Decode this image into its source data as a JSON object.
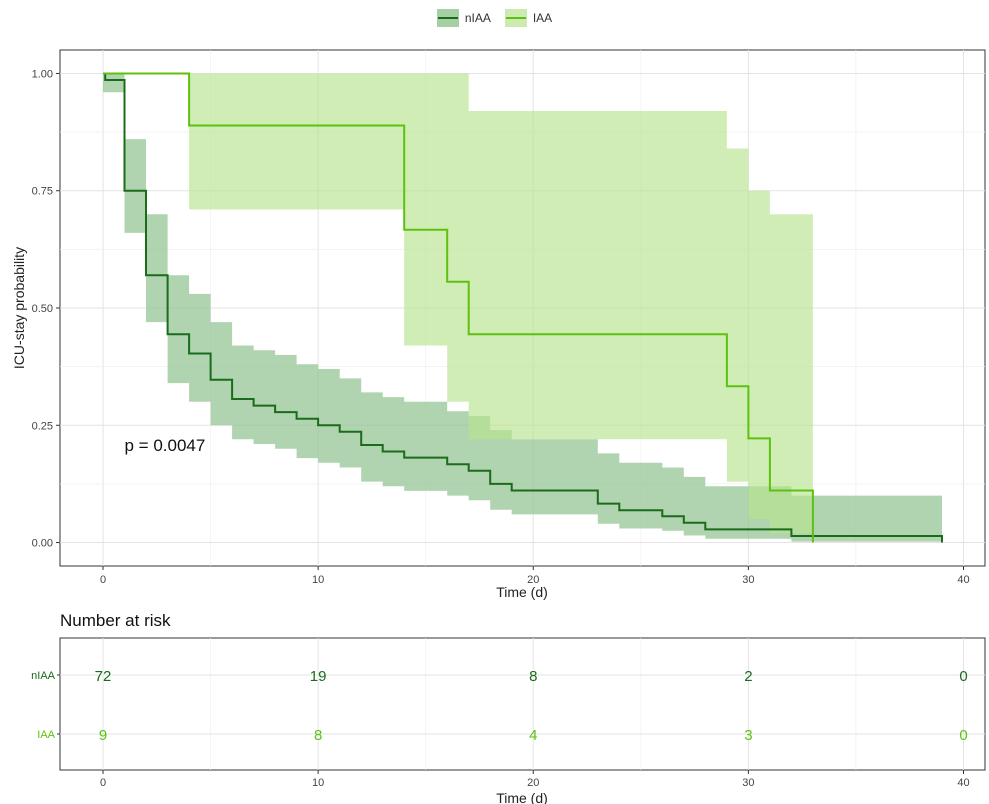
{
  "legend": {
    "items": [
      {
        "name": "nIAA",
        "line": "#1a6b1a",
        "fill": "#a6cfa6"
      },
      {
        "name": "IAA",
        "line": "#5cc20f",
        "fill": "#cdebb0"
      }
    ]
  },
  "chart_data": [
    {
      "type": "line",
      "subtype": "kaplan-meier step curve with confidence bands",
      "xlabel": "Time (d)",
      "ylabel": "ICU-stay probability",
      "xlim": [
        -2,
        41
      ],
      "ylim": [
        -0.05,
        1.05
      ],
      "x_ticks": [
        0,
        10,
        20,
        30,
        40
      ],
      "y_ticks": [
        0.0,
        0.25,
        0.5,
        0.75,
        1.0
      ],
      "y_tick_labels": [
        "0.00",
        "0.25",
        "0.50",
        "0.75",
        "1.00"
      ],
      "grid": true,
      "legend_position": "top-center",
      "annotation": "p = 0.0047",
      "annotation_at": [
        1,
        0.195
      ],
      "series": [
        {
          "name": "nIAA",
          "color": "#1a6b1a",
          "band_color": "#8fc28f",
          "steps": [
            [
              0,
              1.0
            ],
            [
              0.1,
              0.986
            ],
            [
              1,
              0.75
            ],
            [
              2,
              0.57
            ],
            [
              3,
              0.444
            ],
            [
              4,
              0.403
            ],
            [
              5,
              0.347
            ],
            [
              6,
              0.306
            ],
            [
              7,
              0.292
            ],
            [
              8,
              0.278
            ],
            [
              9,
              0.264
            ],
            [
              10,
              0.25
            ],
            [
              11,
              0.236
            ],
            [
              12,
              0.208
            ],
            [
              13,
              0.194
            ],
            [
              14,
              0.181
            ],
            [
              16,
              0.167
            ],
            [
              17,
              0.153
            ],
            [
              18,
              0.125
            ],
            [
              19,
              0.111
            ],
            [
              23,
              0.083
            ],
            [
              24,
              0.069
            ],
            [
              26,
              0.056
            ],
            [
              27,
              0.042
            ],
            [
              28,
              0.028
            ],
            [
              32,
              0.014
            ],
            [
              39,
              0.0
            ]
          ],
          "band": [
            [
              0,
              0.96,
              1.0
            ],
            [
              1,
              0.66,
              0.86
            ],
            [
              2,
              0.47,
              0.7
            ],
            [
              3,
              0.34,
              0.57
            ],
            [
              4,
              0.3,
              0.53
            ],
            [
              5,
              0.25,
              0.47
            ],
            [
              6,
              0.22,
              0.42
            ],
            [
              7,
              0.21,
              0.41
            ],
            [
              8,
              0.2,
              0.4
            ],
            [
              9,
              0.18,
              0.38
            ],
            [
              10,
              0.17,
              0.37
            ],
            [
              11,
              0.16,
              0.35
            ],
            [
              12,
              0.13,
              0.32
            ],
            [
              13,
              0.12,
              0.31
            ],
            [
              14,
              0.11,
              0.3
            ],
            [
              16,
              0.1,
              0.28
            ],
            [
              17,
              0.09,
              0.27
            ],
            [
              18,
              0.07,
              0.24
            ],
            [
              19,
              0.06,
              0.22
            ],
            [
              23,
              0.04,
              0.19
            ],
            [
              24,
              0.03,
              0.17
            ],
            [
              26,
              0.025,
              0.16
            ],
            [
              27,
              0.015,
              0.14
            ],
            [
              28,
              0.008,
              0.12
            ],
            [
              32,
              0.002,
              0.1
            ],
            [
              39,
              0.002,
              0.1
            ]
          ]
        },
        {
          "name": "IAA",
          "color": "#5cc20f",
          "band_color": "#b9e38f",
          "steps": [
            [
              0,
              1.0
            ],
            [
              4,
              0.889
            ],
            [
              14,
              0.667
            ],
            [
              16,
              0.556
            ],
            [
              17,
              0.444
            ],
            [
              29,
              0.333
            ],
            [
              30,
              0.222
            ],
            [
              31,
              0.111
            ],
            [
              33,
              0.0
            ]
          ],
          "band": [
            [
              0,
              1.0,
              1.0
            ],
            [
              4,
              0.71,
              1.0
            ],
            [
              14,
              0.42,
              1.0
            ],
            [
              16,
              0.3,
              1.0
            ],
            [
              17,
              0.22,
              0.92
            ],
            [
              29,
              0.13,
              0.84
            ],
            [
              30,
              0.05,
              0.75
            ],
            [
              31,
              0.02,
              0.7
            ],
            [
              32,
              0.02,
              0.7
            ],
            [
              33,
              0.0,
              0.7
            ]
          ]
        }
      ]
    },
    {
      "type": "table",
      "title": "Number at risk",
      "xlabel": "Time (d)",
      "x_ticks": [
        0,
        10,
        20,
        30,
        40
      ],
      "rows": [
        {
          "name": "nIAA",
          "color": "#1a6b1a",
          "values": [
            "72",
            "19",
            "8",
            "2",
            "0"
          ]
        },
        {
          "name": "IAA",
          "color": "#5cc20f",
          "values": [
            "9",
            "8",
            "4",
            "3",
            "0"
          ]
        }
      ]
    }
  ]
}
